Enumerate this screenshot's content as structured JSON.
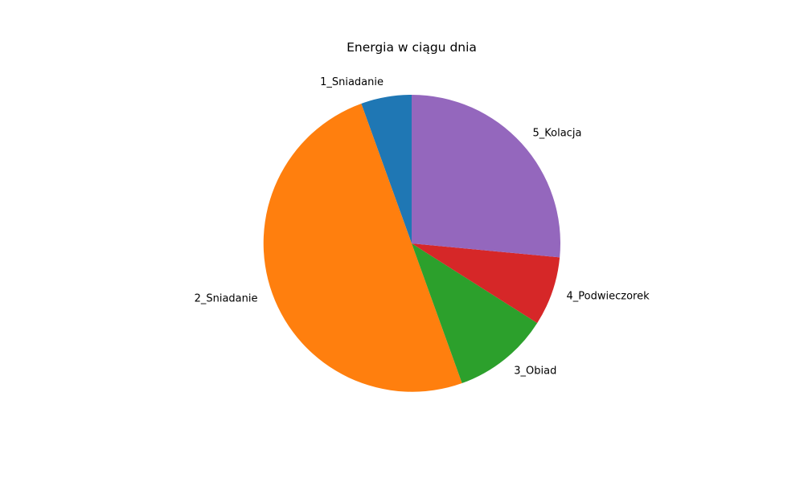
{
  "chart_data": {
    "type": "pie",
    "title": "Energia w ciągu dnia",
    "categories": [
      "1_Sniadanie",
      "2_Sniadanie",
      "3_Obiad",
      "4_Podwieczorek",
      "5_Kolacja"
    ],
    "values": [
      5.5,
      50.0,
      10.5,
      7.5,
      26.5
    ],
    "colors": [
      "#1f77b4",
      "#ff7f0e",
      "#2ca02c",
      "#d62728",
      "#9467bd"
    ],
    "start_angle_deg": 90,
    "direction": "counterclockwise",
    "legend": "none"
  }
}
